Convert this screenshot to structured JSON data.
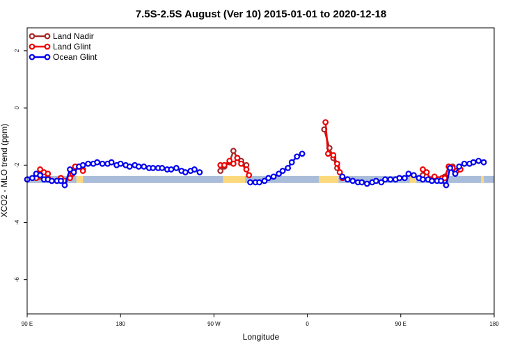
{
  "chart_data": {
    "type": "line",
    "title": "7.5S-2.5S August (Ver 10)   2015-01-01 to 2020-12-18",
    "xlabel": "Longitude",
    "ylabel": "XCO2 - MLO trend (ppm)",
    "xlim": [
      -90,
      270
    ],
    "ylim": [
      -7.2,
      2.8
    ],
    "x_ticks": [
      {
        "value": -90,
        "label": "90 E"
      },
      {
        "value": -18,
        "label": "180"
      },
      {
        "value": 54,
        "label": "90 W"
      },
      {
        "value": 126,
        "label": "0"
      },
      {
        "value": 198,
        "label": "90 E"
      },
      {
        "value": 270,
        "label": "180"
      }
    ],
    "y_ticks": [
      {
        "value": 2,
        "label": "2"
      },
      {
        "value": 0,
        "label": "0"
      },
      {
        "value": -2,
        "label": "-2"
      },
      {
        "value": -4,
        "label": "-4"
      },
      {
        "value": -6,
        "label": "-6"
      }
    ],
    "grid": false,
    "legend_position": "top-left",
    "surface_band": {
      "y": -2.5,
      "colors": {
        "ocean": "#a9bcd9",
        "land": "#fcd87c"
      },
      "segments": [
        {
          "type": "ocean",
          "x": [
            -90,
            -52
          ]
        },
        {
          "type": "land",
          "x": [
            -52,
            -47
          ]
        },
        {
          "type": "ocean",
          "x": [
            -47,
            61
          ]
        },
        {
          "type": "land",
          "x": [
            61,
            78
          ]
        },
        {
          "type": "ocean",
          "x": [
            78,
            135
          ]
        },
        {
          "type": "land",
          "x": [
            135,
            150
          ]
        },
        {
          "type": "ocean",
          "x": [
            150,
            205
          ]
        },
        {
          "type": "land",
          "x": [
            205,
            210
          ]
        },
        {
          "type": "ocean",
          "x": [
            210,
            260
          ]
        },
        {
          "type": "land",
          "x": [
            260,
            262
          ]
        },
        {
          "type": "ocean",
          "x": [
            262,
            270
          ]
        }
      ]
    },
    "series": [
      {
        "name": "Land Nadir",
        "color": "#a52a2a",
        "segments": [
          [
            [
              -80,
              -2.4
            ],
            [
              -77,
              -2.35
            ]
          ],
          [
            [
              -53,
              -2.1
            ],
            [
              -50,
              -2.05
            ],
            [
              -47,
              -2.15
            ]
          ],
          [
            [
              59,
              -2.2
            ],
            [
              62,
              -2.05
            ],
            [
              66,
              -1.9
            ],
            [
              69,
              -1.5
            ],
            [
              72,
              -1.75
            ],
            [
              75,
              -1.85
            ],
            [
              79,
              -2.0
            ]
          ],
          [
            [
              139,
              -0.75
            ],
            [
              143,
              -1.4
            ],
            [
              146,
              -1.75
            ],
            [
              149,
              -2.1
            ]
          ],
          [
            [
              215,
              -2.35
            ],
            [
              218,
              -2.4
            ]
          ],
          [
            [
              232,
              -2.4
            ],
            [
              235,
              -2.05
            ],
            [
              238,
              -2.05
            ],
            [
              241,
              -2.2
            ]
          ]
        ]
      },
      {
        "name": "Land Glint",
        "color": "#ee0000",
        "segments": [
          [
            [
              -83,
              -2.45
            ],
            [
              -80,
              -2.15
            ],
            [
              -77,
              -2.25
            ],
            [
              -74,
              -2.3
            ],
            [
              -71,
              -2.55
            ],
            [
              -67,
              -2.55
            ],
            [
              -64,
              -2.45
            ],
            [
              -61,
              -2.55
            ],
            [
              -57,
              -2.45
            ],
            [
              -55,
              -2.3
            ]
          ],
          [
            [
              -53,
              -2.05
            ],
            [
              -50,
              -2.05
            ],
            [
              -47,
              -2.2
            ]
          ],
          [
            [
              59,
              -2.0
            ],
            [
              62,
              -2.0
            ],
            [
              66,
              -1.85
            ],
            [
              69,
              -1.95
            ],
            [
              72,
              -1.75
            ],
            [
              75,
              -1.95
            ],
            [
              79,
              -2.15
            ],
            [
              81,
              -2.35
            ]
          ],
          [
            [
              140,
              -0.5
            ],
            [
              142,
              -1.6
            ],
            [
              146,
              -1.65
            ],
            [
              149,
              -1.95
            ],
            [
              151,
              -2.25
            ],
            [
              153,
              -2.45
            ]
          ],
          [
            [
              215,
              -2.15
            ],
            [
              218,
              -2.25
            ],
            [
              221,
              -2.5
            ],
            [
              224,
              -2.4
            ],
            [
              227,
              -2.5
            ],
            [
              230,
              -2.45
            ]
          ],
          [
            [
              232,
              -2.45
            ],
            [
              235,
              -2.05
            ],
            [
              238,
              -2.1
            ],
            [
              241,
              -2.2
            ],
            [
              244,
              -2.15
            ]
          ]
        ]
      },
      {
        "name": "Ocean Glint",
        "color": "#0000ee",
        "segments": [
          [
            [
              -90,
              -2.5
            ],
            [
              -86,
              -2.45
            ],
            [
              -83,
              -2.3
            ],
            [
              -80,
              -2.35
            ],
            [
              -77,
              -2.5
            ],
            [
              -74,
              -2.5
            ],
            [
              -71,
              -2.55
            ],
            [
              -67,
              -2.55
            ],
            [
              -64,
              -2.55
            ],
            [
              -61,
              -2.7
            ],
            [
              -57,
              -2.15
            ],
            [
              -54,
              -2.25
            ],
            [
              -50,
              -2.05
            ],
            [
              -47,
              -2.0
            ],
            [
              -43,
              -1.95
            ],
            [
              -39,
              -1.95
            ],
            [
              -36,
              -1.9
            ],
            [
              -32,
              -1.95
            ],
            [
              -28,
              -1.95
            ],
            [
              -25,
              -1.9
            ],
            [
              -21,
              -2.0
            ],
            [
              -18,
              -1.95
            ],
            [
              -14,
              -2.0
            ],
            [
              -11,
              -2.05
            ],
            [
              -7,
              -2.0
            ],
            [
              -4,
              -2.05
            ],
            [
              0,
              -2.05
            ],
            [
              4,
              -2.1
            ],
            [
              7,
              -2.1
            ],
            [
              11,
              -2.1
            ],
            [
              14,
              -2.1
            ],
            [
              18,
              -2.15
            ],
            [
              21,
              -2.15
            ],
            [
              25,
              -2.1
            ],
            [
              29,
              -2.2
            ],
            [
              32,
              -2.25
            ],
            [
              36,
              -2.2
            ],
            [
              39,
              -2.15
            ],
            [
              43,
              -2.25
            ]
          ],
          [
            [
              82,
              -2.6
            ],
            [
              86,
              -2.6
            ],
            [
              89,
              -2.6
            ],
            [
              93,
              -2.55
            ],
            [
              96,
              -2.45
            ],
            [
              100,
              -2.4
            ],
            [
              104,
              -2.3
            ],
            [
              107,
              -2.2
            ],
            [
              111,
              -2.1
            ],
            [
              114,
              -1.9
            ],
            [
              118,
              -1.7
            ],
            [
              122,
              -1.6
            ]
          ],
          [
            [
              153,
              -2.4
            ],
            [
              157,
              -2.5
            ],
            [
              161,
              -2.55
            ],
            [
              165,
              -2.6
            ],
            [
              168,
              -2.6
            ],
            [
              172,
              -2.65
            ],
            [
              176,
              -2.6
            ],
            [
              179,
              -2.55
            ],
            [
              183,
              -2.6
            ],
            [
              186,
              -2.5
            ],
            [
              190,
              -2.5
            ],
            [
              194,
              -2.5
            ],
            [
              197,
              -2.45
            ],
            [
              201,
              -2.45
            ],
            [
              204,
              -2.3
            ],
            [
              208,
              -2.35
            ],
            [
              212,
              -2.45
            ],
            [
              215,
              -2.5
            ],
            [
              219,
              -2.5
            ],
            [
              222,
              -2.55
            ],
            [
              226,
              -2.55
            ],
            [
              229,
              -2.55
            ],
            [
              233,
              -2.7
            ],
            [
              236,
              -2.1
            ],
            [
              240,
              -2.3
            ],
            [
              243,
              -2.05
            ],
            [
              247,
              -1.95
            ],
            [
              251,
              -1.95
            ],
            [
              254,
              -1.9
            ],
            [
              258,
              -1.85
            ],
            [
              262,
              -1.9
            ]
          ]
        ]
      }
    ]
  }
}
